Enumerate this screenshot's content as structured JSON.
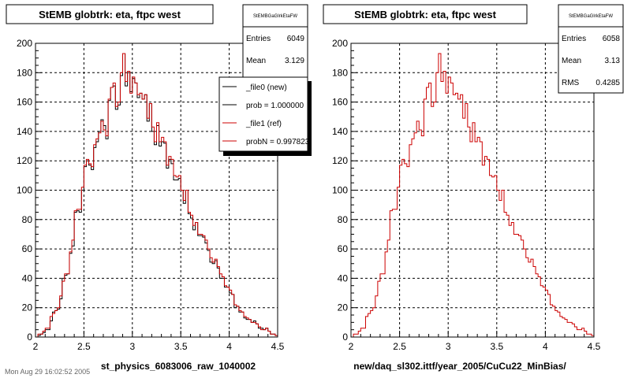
{
  "footer": "Mon Aug 29 16:02:52 2005",
  "panels": [
    {
      "title": "StEMB globtrk: eta, ftpc west",
      "xlabel": "st_physics_6083006_raw_1040002",
      "stats": {
        "name": "StEMBGaGlrkEtaFW",
        "rows": [
          {
            "label": "Entries",
            "value": "6049"
          },
          {
            "label": "Mean",
            "value": "3.129"
          }
        ]
      },
      "legend": [
        {
          "label": "_file0 (new)",
          "color": "#000000"
        },
        {
          "label": "prob = 1.000000",
          "color": "#000000"
        },
        {
          "label": "_file1 (ref)",
          "color": "#cc0000"
        },
        {
          "label": "probN = 0.997823",
          "color": "#cc0000"
        }
      ]
    },
    {
      "title": "StEMB globtrk: eta, ftpc west",
      "xlabel": "new/daq_sl302.ittf/year_2005/CuCu22_MinBias/",
      "stats": {
        "name": "StEMBGaGlrkEtaFW",
        "rows": [
          {
            "label": "Entries",
            "value": "6058"
          },
          {
            "label": "Mean",
            "value": "3.13"
          },
          {
            "label": "RMS",
            "value": "0.4285"
          }
        ]
      },
      "legend": []
    }
  ],
  "colors": {
    "new": "#000000",
    "ref": "#cc0000",
    "grid": "#000000",
    "frame": "#000000"
  },
  "chart_data": [
    {
      "type": "histogram",
      "title": "StEMB globtrk: eta, ftpc west",
      "xlabel": "st_physics_6083006_raw_1040002",
      "xlim": [
        2,
        4.5
      ],
      "ylim": [
        0,
        200
      ],
      "xticks": [
        2,
        2.5,
        3,
        3.5,
        4,
        4.5
      ],
      "yticks": [
        0,
        20,
        40,
        60,
        80,
        100,
        120,
        140,
        160,
        180,
        200
      ],
      "grid": true,
      "bin_width": 0.025,
      "series": [
        {
          "name": "_file0 (new)",
          "color": "#000000",
          "values": [
            0,
            1,
            2,
            3,
            5,
            5,
            11,
            17,
            18,
            19,
            26,
            40,
            42,
            43,
            57,
            62,
            85,
            86,
            85,
            100,
            116,
            120,
            117,
            114,
            129,
            133,
            140,
            148,
            144,
            135,
            161,
            170,
            171,
            155,
            158,
            178,
            193,
            171,
            180,
            167,
            176,
            173,
            163,
            166,
            162,
            165,
            147,
            159,
            140,
            131,
            144,
            130,
            133,
            132,
            115,
            121,
            118,
            107,
            107,
            108,
            100,
            91,
            100,
            84,
            81,
            73,
            78,
            69,
            69,
            68,
            64,
            59,
            51,
            50,
            52,
            47,
            40,
            40,
            34,
            34,
            30,
            29,
            20,
            21,
            17,
            17,
            13,
            12,
            12,
            10,
            11,
            9,
            6,
            6,
            5,
            6,
            4,
            2,
            2,
            1
          ]
        },
        {
          "name": "_file1 (ref)",
          "color": "#cc0000",
          "values": [
            0,
            2,
            2,
            4,
            6,
            6,
            14,
            16,
            18,
            20,
            28,
            38,
            43,
            43,
            58,
            66,
            86,
            87,
            87,
            102,
            117,
            121,
            118,
            116,
            131,
            135,
            139,
            147,
            141,
            137,
            162,
            170,
            173,
            157,
            160,
            180,
            193,
            174,
            181,
            166,
            177,
            173,
            165,
            166,
            162,
            165,
            149,
            159,
            143,
            133,
            146,
            133,
            136,
            133,
            117,
            123,
            121,
            110,
            109,
            110,
            100,
            93,
            100,
            85,
            83,
            76,
            78,
            70,
            70,
            69,
            66,
            60,
            54,
            51,
            53,
            48,
            43,
            41,
            35,
            34,
            32,
            29,
            22,
            21,
            18,
            17,
            14,
            13,
            12,
            10,
            10,
            9,
            7,
            5,
            5,
            6,
            4,
            2,
            2,
            1
          ]
        }
      ]
    },
    {
      "type": "histogram",
      "title": "StEMB globtrk: eta, ftpc west",
      "xlabel": "new/daq_sl302.ittf/year_2005/CuCu22_MinBias/",
      "xlim": [
        2,
        4.5
      ],
      "ylim": [
        0,
        200
      ],
      "xticks": [
        2,
        2.5,
        3,
        3.5,
        4,
        4.5
      ],
      "yticks": [
        0,
        20,
        40,
        60,
        80,
        100,
        120,
        140,
        160,
        180,
        200
      ],
      "grid": true,
      "bin_width": 0.025,
      "series": [
        {
          "name": "_file1 (ref)",
          "color": "#cc0000",
          "values": [
            0,
            2,
            2,
            4,
            6,
            6,
            14,
            16,
            18,
            20,
            28,
            38,
            43,
            43,
            58,
            66,
            86,
            87,
            87,
            102,
            117,
            121,
            118,
            116,
            131,
            135,
            139,
            147,
            141,
            137,
            162,
            170,
            173,
            157,
            160,
            180,
            193,
            174,
            181,
            166,
            177,
            173,
            165,
            166,
            162,
            165,
            149,
            159,
            143,
            133,
            146,
            133,
            136,
            133,
            117,
            123,
            121,
            110,
            109,
            110,
            100,
            93,
            100,
            85,
            83,
            76,
            78,
            70,
            70,
            69,
            66,
            60,
            54,
            51,
            53,
            48,
            43,
            41,
            35,
            34,
            32,
            29,
            22,
            21,
            18,
            17,
            14,
            13,
            12,
            10,
            10,
            9,
            7,
            5,
            5,
            6,
            4,
            2,
            2,
            1
          ]
        }
      ]
    }
  ]
}
